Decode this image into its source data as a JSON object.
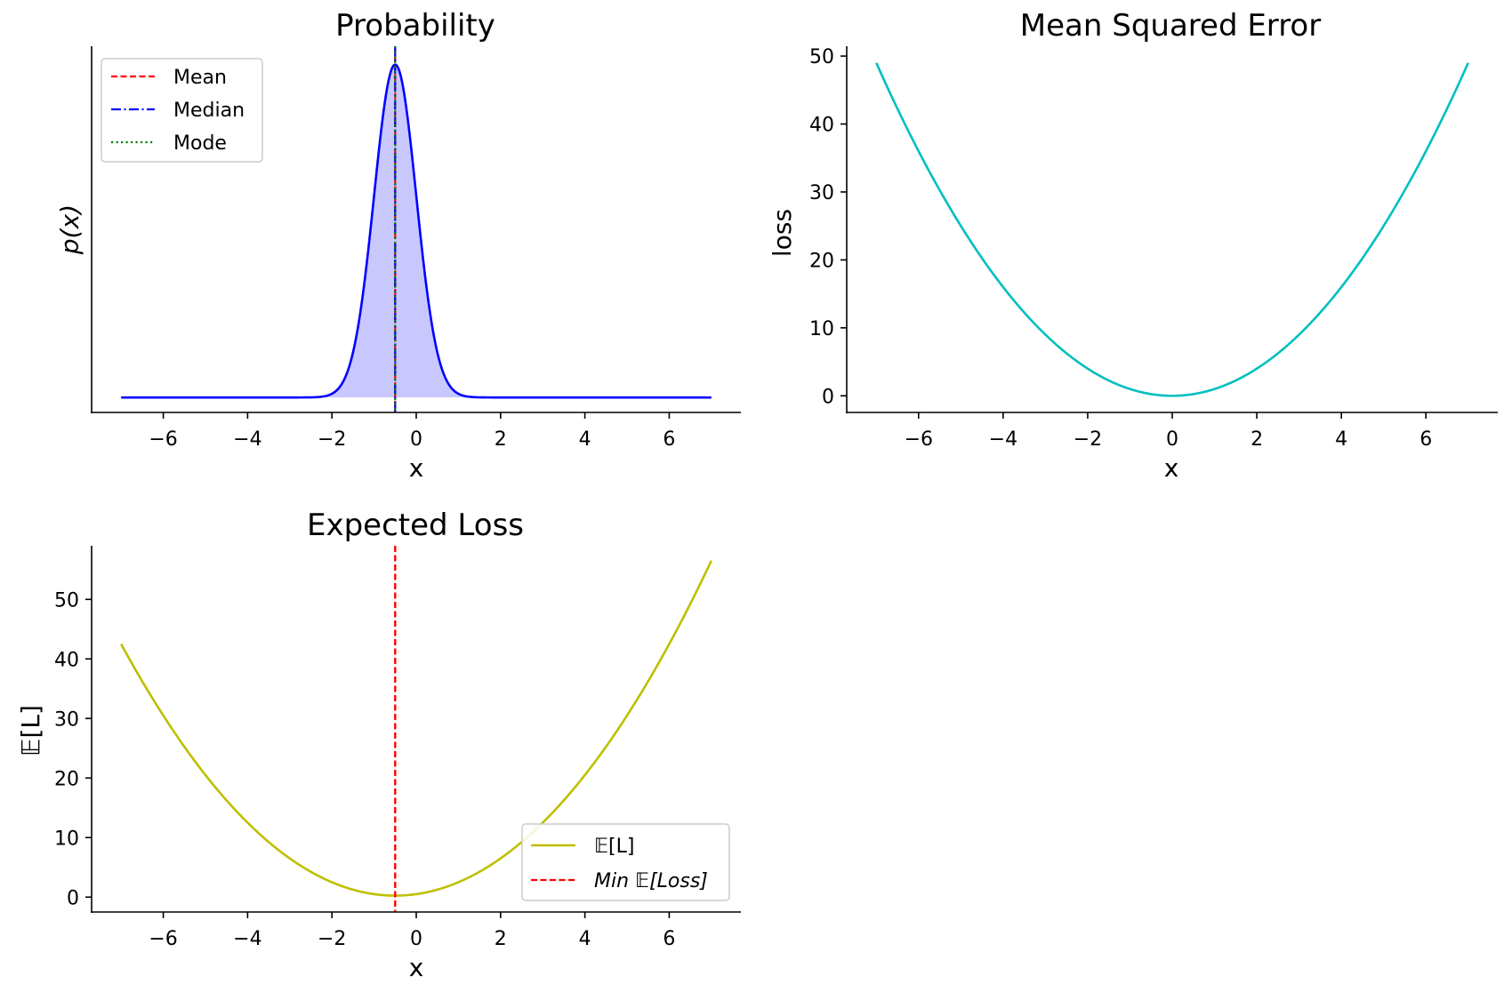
{
  "chart_data": [
    {
      "type": "area",
      "title": "Probability",
      "xlabel": "x",
      "ylabel": "p(x)",
      "xlim": [
        -7.7,
        7.7
      ],
      "ylim": [
        -0.045,
        1.055
      ],
      "xticks": [
        -6,
        -4,
        -2,
        0,
        2,
        4,
        6
      ],
      "xtick_labels": [
        "−6",
        "−4",
        "−2",
        "0",
        "2",
        "4",
        "6"
      ],
      "yticks": [],
      "grid": false,
      "legend_position": "upper-left",
      "density": {
        "mean": -0.5,
        "sd": 0.5,
        "x_range": [
          -7,
          7
        ],
        "line_color": "#0000ff",
        "fill_color": "#c8c8ff"
      },
      "series": [
        {
          "name": "Mean",
          "type": "vline",
          "x": -0.5,
          "color": "#ff0000",
          "style": "dashed"
        },
        {
          "name": "Median",
          "type": "vline",
          "x": -0.5,
          "color": "#0000ff",
          "style": "dashdot"
        },
        {
          "name": "Mode",
          "type": "vline",
          "x": -0.5,
          "color": "#008000",
          "style": "dotted"
        }
      ]
    },
    {
      "type": "line",
      "title": "Mean Squared Error",
      "xlabel": "x",
      "ylabel": "loss",
      "xlim": [
        -7.7,
        7.7
      ],
      "ylim": [
        -2.45,
        51.45
      ],
      "xticks": [
        -6,
        -4,
        -2,
        0,
        2,
        4,
        6
      ],
      "xtick_labels": [
        "−6",
        "−4",
        "−2",
        "0",
        "2",
        "4",
        "6"
      ],
      "yticks": [
        0,
        10,
        20,
        30,
        40,
        50
      ],
      "ytick_labels": [
        "0",
        "10",
        "20",
        "30",
        "40",
        "50"
      ],
      "grid": false,
      "function": "x^2",
      "x_range": [
        -7,
        7
      ],
      "color": "#00bfbf"
    },
    {
      "type": "line",
      "title": "Expected Loss",
      "xlabel": "x",
      "ylabel": "𝔼[L]",
      "xlim": [
        -7.7,
        7.7
      ],
      "ylim": [
        -2.5,
        59.0
      ],
      "xticks": [
        -6,
        -4,
        -2,
        0,
        2,
        4,
        6
      ],
      "xtick_labels": [
        "−6",
        "−4",
        "−2",
        "0",
        "2",
        "4",
        "6"
      ],
      "yticks": [
        0,
        10,
        20,
        30,
        40,
        50
      ],
      "ytick_labels": [
        "0",
        "10",
        "20",
        "30",
        "40",
        "50"
      ],
      "grid": false,
      "legend_position": "lower-right",
      "function": "(x+0.5)^2 + 0.25",
      "x_range": [
        -7,
        7
      ],
      "endpoints": {
        "x": [
          -7,
          7
        ],
        "y": [
          42.5,
          56.5
        ]
      },
      "minimum": {
        "x": -0.5,
        "y": 0.25
      },
      "series": [
        {
          "name": "𝔼[L]",
          "type": "line",
          "color": "#bfbf00",
          "style": "solid"
        },
        {
          "name": "Min 𝔼[Loss]",
          "type": "vline",
          "x": -0.5,
          "color": "#ff0000",
          "style": "dashed"
        }
      ]
    }
  ]
}
